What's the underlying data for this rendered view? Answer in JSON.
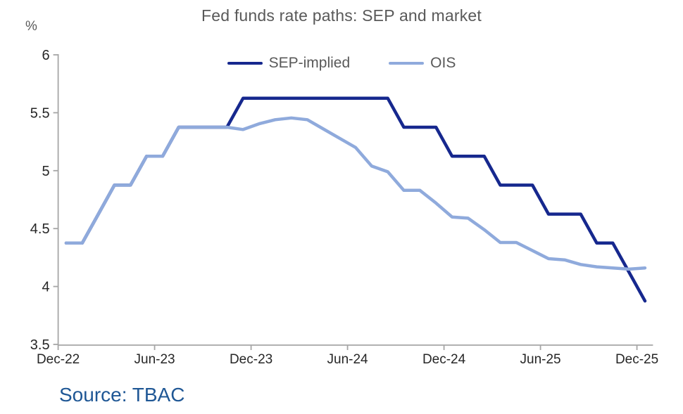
{
  "chart_data": {
    "type": "line",
    "title": "Fed funds rate paths: SEP and market",
    "unit_label": "%",
    "source": "Source: TBAC",
    "legend_position": "top-center",
    "grid": false,
    "ylim": [
      3.5,
      6
    ],
    "y_tick_labels": [
      "6",
      "5.5",
      "5",
      "4.5",
      "4",
      "3.5"
    ],
    "x_tick_labels": [
      "Dec-22",
      "Jun-23",
      "Dec-23",
      "Jun-24",
      "Dec-24",
      "Jun-25",
      "Dec-25"
    ],
    "months": [
      "Dec-22",
      "Jan-23",
      "Feb-23",
      "Mar-23",
      "Apr-23",
      "May-23",
      "Jun-23",
      "Jul-23",
      "Aug-23",
      "Sep-23",
      "Oct-23",
      "Nov-23",
      "Dec-23",
      "Jan-24",
      "Feb-24",
      "Mar-24",
      "Apr-24",
      "May-24",
      "Jun-24",
      "Jul-24",
      "Aug-24",
      "Sep-24",
      "Oct-24",
      "Nov-24",
      "Dec-24",
      "Jan-25",
      "Feb-25",
      "Mar-25",
      "Apr-25",
      "May-25",
      "Jun-25",
      "Jul-25",
      "Aug-25",
      "Sep-25",
      "Oct-25",
      "Nov-25",
      "Dec-25"
    ],
    "series": [
      {
        "name": "SEP-implied",
        "color": "#16288E",
        "values": [
          4.375,
          4.375,
          4.625,
          4.875,
          4.875,
          5.125,
          5.125,
          5.375,
          5.375,
          5.375,
          5.375,
          5.625,
          5.625,
          5.625,
          5.625,
          5.625,
          5.625,
          5.625,
          5.625,
          5.625,
          5.625,
          5.375,
          5.375,
          5.375,
          5.125,
          5.125,
          5.125,
          4.875,
          4.875,
          4.875,
          4.625,
          4.625,
          4.625,
          4.375,
          4.375,
          4.125,
          3.875
        ]
      },
      {
        "name": "OIS",
        "color": "#8FAADC",
        "values": [
          4.375,
          4.375,
          4.625,
          4.875,
          4.875,
          5.125,
          5.125,
          5.375,
          5.375,
          5.375,
          5.375,
          5.355,
          5.405,
          5.44,
          5.455,
          5.44,
          5.36,
          5.28,
          5.2,
          5.04,
          4.99,
          4.83,
          4.83,
          4.72,
          4.6,
          4.59,
          4.49,
          4.38,
          4.38,
          4.31,
          4.24,
          4.23,
          4.19,
          4.17,
          4.16,
          4.15,
          4.16
        ]
      }
    ]
  }
}
